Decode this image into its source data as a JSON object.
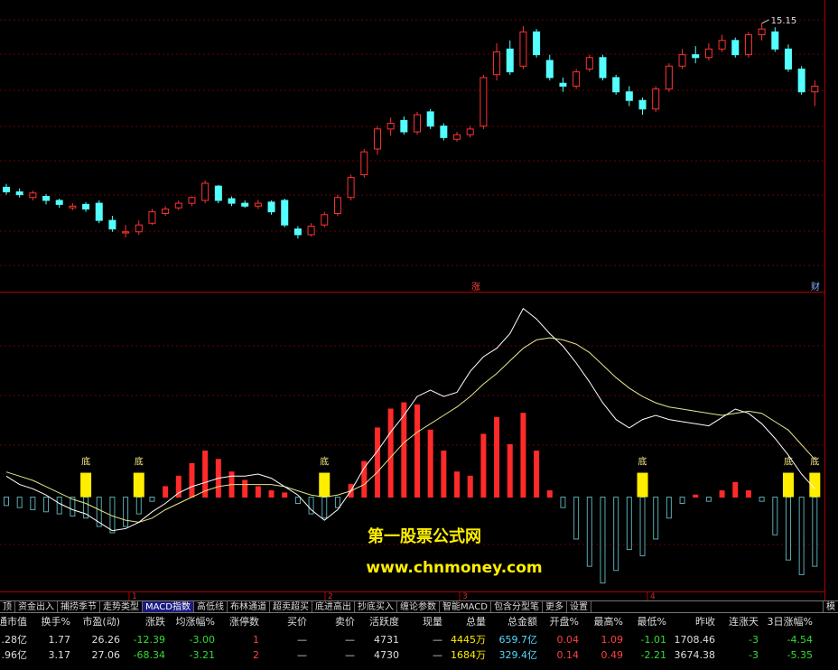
{
  "chart_data": [
    {
      "type": "candlestick",
      "ylim": [
        10.5,
        15.4
      ],
      "high_label": 15.15,
      "up_color": "#ff3232",
      "down_color": "#54ffff",
      "annotations": [
        "涨",
        "财"
      ],
      "open": [
        12.28,
        12.2,
        12.1,
        12.12,
        12.05,
        11.92,
        11.98,
        12.0,
        11.7,
        11.48,
        11.5,
        11.65,
        11.82,
        11.92,
        12.0,
        12.05,
        12.3,
        12.08,
        12.0,
        11.95,
        12.02,
        12.05,
        11.55,
        11.45,
        11.62,
        11.82,
        12.1,
        12.5,
        12.95,
        13.3,
        13.45,
        13.25,
        13.6,
        13.35,
        13.12,
        13.2,
        13.35,
        14.25,
        14.7,
        14.4,
        15.0,
        14.5,
        14.1,
        14.05,
        14.35,
        14.55,
        14.2,
        13.95,
        13.8,
        13.65,
        14.0,
        14.4,
        14.6,
        14.55,
        14.7,
        14.85,
        14.6,
        14.95,
        15.0,
        14.7,
        14.35,
        13.95
      ],
      "high": [
        12.34,
        12.26,
        12.22,
        12.16,
        12.08,
        12.0,
        12.02,
        12.05,
        11.78,
        11.62,
        11.7,
        11.9,
        11.95,
        12.05,
        12.12,
        12.4,
        12.32,
        12.12,
        12.05,
        12.06,
        12.05,
        12.08,
        11.6,
        11.65,
        11.85,
        12.15,
        12.5,
        12.95,
        13.35,
        13.5,
        13.52,
        13.6,
        13.65,
        13.4,
        13.25,
        13.35,
        14.25,
        14.8,
        14.85,
        15.1,
        15.05,
        14.6,
        14.2,
        14.35,
        14.6,
        14.6,
        14.25,
        14.05,
        13.85,
        14.05,
        14.45,
        14.7,
        14.75,
        14.8,
        14.95,
        14.9,
        15.0,
        15.15,
        15.08,
        14.78,
        14.4,
        14.15
      ],
      "low": [
        12.15,
        12.1,
        12.05,
        11.98,
        11.92,
        11.88,
        11.85,
        11.65,
        11.5,
        11.4,
        11.45,
        11.62,
        11.78,
        11.88,
        11.95,
        12.0,
        12.0,
        11.95,
        11.92,
        11.9,
        11.8,
        11.58,
        11.38,
        11.42,
        11.58,
        11.78,
        12.05,
        12.45,
        12.85,
        13.18,
        13.2,
        13.2,
        13.3,
        13.1,
        13.08,
        13.15,
        13.3,
        14.15,
        14.25,
        14.35,
        14.55,
        14.15,
        13.95,
        14.0,
        14.3,
        14.15,
        13.9,
        13.7,
        13.55,
        13.6,
        13.95,
        14.35,
        14.45,
        14.5,
        14.65,
        14.55,
        14.55,
        14.85,
        14.65,
        14.3,
        13.9,
        13.7
      ],
      "close": [
        12.2,
        12.15,
        12.18,
        12.05,
        11.98,
        11.95,
        11.9,
        11.7,
        11.55,
        11.5,
        11.62,
        11.85,
        11.9,
        12.0,
        12.1,
        12.35,
        12.05,
        12.0,
        11.95,
        12.0,
        11.85,
        11.62,
        11.45,
        11.6,
        11.8,
        12.1,
        12.45,
        12.9,
        13.3,
        13.4,
        13.25,
        13.55,
        13.35,
        13.15,
        13.2,
        13.3,
        14.2,
        14.65,
        14.3,
        15.0,
        14.6,
        14.2,
        14.05,
        14.3,
        14.55,
        14.2,
        13.95,
        13.8,
        13.65,
        14.0,
        14.4,
        14.6,
        14.55,
        14.7,
        14.85,
        14.6,
        14.95,
        15.05,
        14.7,
        14.35,
        13.95,
        14.05
      ]
    },
    {
      "type": "macd",
      "ylim": [
        -0.45,
        0.95
      ],
      "pos_color": "#ff2a2a",
      "neg_color": "#5aa9b0",
      "dif_color": "#ffffff",
      "dea_color": "#e6e68c",
      "signal_color": "#ffee00",
      "macd": [
        -0.04,
        -0.05,
        -0.06,
        -0.07,
        -0.08,
        -0.09,
        -0.1,
        -0.14,
        -0.17,
        -0.14,
        -0.08,
        -0.02,
        0.05,
        0.1,
        0.16,
        0.22,
        0.18,
        0.12,
        0.08,
        0.05,
        0.03,
        0.02,
        -0.03,
        -0.08,
        -0.1,
        -0.05,
        0.06,
        0.17,
        0.33,
        0.42,
        0.45,
        0.44,
        0.32,
        0.22,
        0.12,
        0.1,
        0.3,
        0.38,
        0.25,
        0.4,
        0.22,
        0.03,
        -0.05,
        -0.2,
        -0.33,
        -0.41,
        -0.35,
        -0.25,
        -0.28,
        -0.2,
        -0.1,
        -0.03,
        0.01,
        -0.02,
        0.03,
        0.07,
        0.03,
        -0.02,
        -0.18,
        -0.3,
        -0.37,
        -0.33
      ],
      "dif": [
        0.1,
        0.06,
        0.04,
        0.01,
        -0.03,
        -0.06,
        -0.08,
        -0.12,
        -0.16,
        -0.15,
        -0.12,
        -0.07,
        -0.03,
        0.02,
        0.05,
        0.07,
        0.09,
        0.1,
        0.1,
        0.11,
        0.09,
        0.05,
        0.01,
        -0.06,
        -0.11,
        -0.06,
        0.03,
        0.14,
        0.22,
        0.31,
        0.39,
        0.48,
        0.51,
        0.48,
        0.5,
        0.6,
        0.67,
        0.71,
        0.78,
        0.9,
        0.85,
        0.78,
        0.72,
        0.64,
        0.55,
        0.45,
        0.37,
        0.33,
        0.37,
        0.39,
        0.37,
        0.36,
        0.35,
        0.34,
        0.38,
        0.42,
        0.4,
        0.35,
        0.28,
        0.2,
        0.11,
        0.04
      ],
      "dea": [
        0.12,
        0.1,
        0.08,
        0.05,
        0.02,
        -0.01,
        -0.03,
        -0.06,
        -0.09,
        -0.11,
        -0.12,
        -0.1,
        -0.06,
        -0.03,
        0.0,
        0.03,
        0.05,
        0.06,
        0.06,
        0.06,
        0.06,
        0.05,
        0.03,
        0.01,
        0.0,
        0.01,
        0.03,
        0.06,
        0.12,
        0.19,
        0.26,
        0.31,
        0.35,
        0.39,
        0.43,
        0.48,
        0.54,
        0.59,
        0.65,
        0.71,
        0.75,
        0.76,
        0.75,
        0.73,
        0.69,
        0.63,
        0.57,
        0.52,
        0.48,
        0.45,
        0.43,
        0.42,
        0.41,
        0.4,
        0.39,
        0.4,
        0.41,
        0.4,
        0.36,
        0.32,
        0.25,
        0.18
      ],
      "signals": [
        null,
        null,
        null,
        null,
        null,
        null,
        "底",
        null,
        null,
        null,
        "底",
        null,
        null,
        null,
        null,
        null,
        null,
        null,
        null,
        null,
        null,
        null,
        null,
        null,
        "底",
        null,
        null,
        null,
        null,
        null,
        null,
        null,
        null,
        null,
        null,
        null,
        null,
        null,
        null,
        null,
        null,
        null,
        null,
        null,
        null,
        null,
        null,
        null,
        "底",
        null,
        null,
        null,
        null,
        null,
        null,
        null,
        null,
        null,
        null,
        "底",
        null,
        "底"
      ]
    }
  ],
  "watermark": {
    "title": "第一股票公式网",
    "url": "www.chnmoney.com"
  },
  "time_axis": [
    "1",
    "2",
    "3",
    "4"
  ],
  "tabs": {
    "items": [
      "顶",
      "资金出入",
      "捕捞季节",
      "走势类型",
      "MACD指数",
      "高低线",
      "布林通道",
      "超卖超买",
      "底进高出",
      "抄底买入",
      "缠论参数",
      "智能MACD",
      "包含分型笔",
      "更多",
      "设置"
    ],
    "active": "MACD指数",
    "right": "模"
  },
  "table": {
    "header": [
      "通市值",
      "换手%",
      "市盈(动)",
      "涨跌",
      "均涨幅%",
      "涨停数",
      "买价",
      "卖价",
      "活跃度",
      "现量",
      "总量",
      "总金额",
      "开盘%",
      "最高%",
      "最低%",
      "昨收",
      "连涨天",
      "3日涨幅%"
    ],
    "rows": [
      [
        ".28亿",
        "1.77",
        "26.26",
        "-12.39",
        "-3.00",
        "1",
        "—",
        "—",
        "4731",
        "—",
        "4445万",
        "659.7亿",
        "0.04",
        "1.09",
        "-1.01",
        "1708.46",
        "-3",
        "-4.54"
      ],
      [
        ".96亿",
        "3.17",
        "27.06",
        "-68.34",
        "-3.21",
        "2",
        "—",
        "—",
        "4730",
        "—",
        "1684万",
        "329.4亿",
        "0.14",
        "0.49",
        "-2.21",
        "3674.38",
        "-3",
        "-5.35"
      ]
    ]
  }
}
